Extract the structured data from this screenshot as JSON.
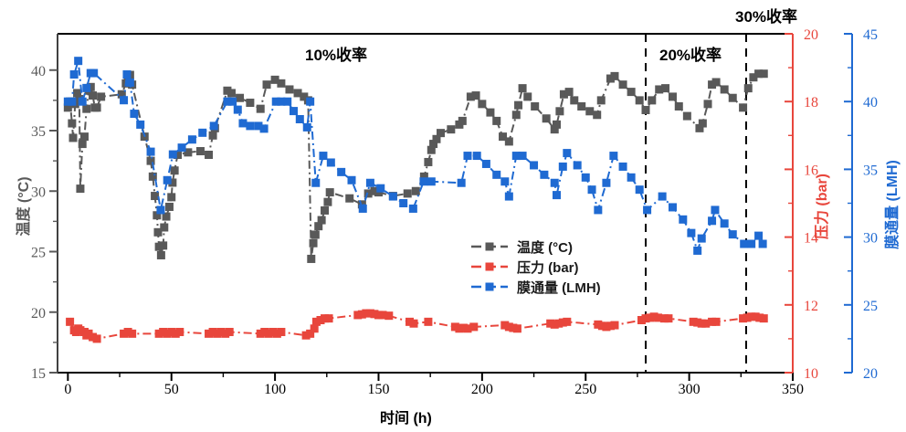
{
  "annotations": {
    "phase1": "10%收率",
    "phase2": "20%收率",
    "phase3": "30%收率"
  },
  "axes": {
    "x": {
      "label": "时间 (h)",
      "min": -5,
      "max": 350,
      "tick_min": 0,
      "tick_max": 350,
      "major_step": 50,
      "minor_step": 25,
      "color": "#000000"
    },
    "temp": {
      "label": "温度 (°C)",
      "min": 15,
      "max": 43,
      "tick_min": 15,
      "tick_max": 40,
      "major_step": 5,
      "minor_step": 2.5,
      "color": "#595959"
    },
    "pressure": {
      "label": "压力 (bar)",
      "min": 10,
      "max": 20,
      "tick_min": 10,
      "tick_max": 20,
      "major_step": 2,
      "minor_step": 1,
      "color": "#e8463c"
    },
    "flux": {
      "label": "膜通量 (LMH)",
      "min": 20,
      "max": 45,
      "tick_min": 20,
      "tick_max": 45,
      "major_step": 5,
      "minor_step": 2.5,
      "color": "#1f6ad2"
    }
  },
  "legend": [
    {
      "label": "温度 (°C)",
      "color": "#595959"
    },
    {
      "label": "压力 (bar)",
      "color": "#e8463c"
    },
    {
      "label": "膜通量 (LMH)",
      "color": "#1f6ad2"
    }
  ],
  "phase_lines_x": [
    279,
    327.5
  ],
  "chart_data": {
    "type": "line",
    "title": "",
    "xlabel": "时间 (h)",
    "grid": false,
    "legend_position": "center-right-inside",
    "series": [
      {
        "name": "温度 (°C)",
        "axis": "temp",
        "color": "#595959",
        "marker": "square",
        "points": [
          [
            0,
            36.9
          ],
          [
            1,
            37.4
          ],
          [
            2,
            35.6
          ],
          [
            2.5,
            34.4
          ],
          [
            3.5,
            37.2
          ],
          [
            4.5,
            38.1
          ],
          [
            5.5,
            37.6
          ],
          [
            6,
            30.2
          ],
          [
            7,
            33.9
          ],
          [
            8,
            34.5
          ],
          [
            9,
            36.8
          ],
          [
            10,
            38.3
          ],
          [
            11,
            38.6
          ],
          [
            12,
            37.9
          ],
          [
            13,
            36.9
          ],
          [
            14,
            36.9
          ],
          [
            16,
            37.8
          ],
          [
            26,
            38.0
          ],
          [
            28,
            38.9
          ],
          [
            29,
            39.4
          ],
          [
            30,
            39.6
          ],
          [
            31,
            38.8
          ],
          [
            37,
            34.5
          ],
          [
            40,
            32.5
          ],
          [
            41,
            31.2
          ],
          [
            42,
            29.6
          ],
          [
            43,
            28.0
          ],
          [
            43.5,
            26.6
          ],
          [
            44,
            25.4
          ],
          [
            45,
            24.7
          ],
          [
            46,
            25.5
          ],
          [
            46.5,
            27.0
          ],
          [
            47.5,
            27.9
          ],
          [
            49,
            28.7
          ],
          [
            50,
            29.5
          ],
          [
            50.5,
            30.7
          ],
          [
            51.5,
            31.7
          ],
          [
            53,
            33.0
          ],
          [
            58,
            33.2
          ],
          [
            64,
            33.3
          ],
          [
            68,
            33.0
          ],
          [
            70,
            34.6
          ],
          [
            71,
            35.2
          ],
          [
            77,
            38.3
          ],
          [
            79,
            38.1
          ],
          [
            83,
            37.7
          ],
          [
            88,
            37.3
          ],
          [
            93,
            36.8
          ],
          [
            96,
            38.8
          ],
          [
            100,
            39.2
          ],
          [
            103,
            38.9
          ],
          [
            107,
            38.4
          ],
          [
            111,
            38.1
          ],
          [
            114,
            37.8
          ],
          [
            116,
            37.5
          ],
          [
            117.5,
            24.4
          ],
          [
            118.5,
            25.7
          ],
          [
            119.5,
            26.4
          ],
          [
            121,
            27.1
          ],
          [
            122.5,
            27.6
          ],
          [
            124,
            28.4
          ],
          [
            125.5,
            29.1
          ],
          [
            126.5,
            29.9
          ],
          [
            136,
            29.4
          ],
          [
            142,
            28.9
          ],
          [
            145,
            29.8
          ],
          [
            148,
            30.0
          ],
          [
            150,
            29.9
          ],
          [
            157,
            29.6
          ],
          [
            164,
            29.8
          ],
          [
            168,
            30.0
          ],
          [
            172,
            31.2
          ],
          [
            174,
            32.4
          ],
          [
            175.5,
            33.4
          ],
          [
            176.5,
            33.9
          ],
          [
            178,
            34.3
          ],
          [
            180,
            34.8
          ],
          [
            185,
            35.1
          ],
          [
            189,
            35.5
          ],
          [
            190.5,
            35.8
          ],
          [
            194.5,
            37.8
          ],
          [
            197,
            37.9
          ],
          [
            200,
            37.2
          ],
          [
            204,
            36.5
          ],
          [
            207,
            35.8
          ],
          [
            210,
            34.5
          ],
          [
            213,
            34.1
          ],
          [
            216.5,
            36.3
          ],
          [
            217.5,
            37.1
          ],
          [
            219.5,
            38.5
          ],
          [
            222,
            37.8
          ],
          [
            225.5,
            37.0
          ],
          [
            231,
            36.0
          ],
          [
            235,
            35.1
          ],
          [
            236,
            35.5
          ],
          [
            237.5,
            36.6
          ],
          [
            239.5,
            38.0
          ],
          [
            242,
            38.2
          ],
          [
            244.5,
            37.5
          ],
          [
            248,
            37.0
          ],
          [
            252,
            36.6
          ],
          [
            255.5,
            36.3
          ],
          [
            257.5,
            37.5
          ],
          [
            262,
            39.3
          ],
          [
            264,
            39.5
          ],
          [
            268,
            38.8
          ],
          [
            272,
            38.2
          ],
          [
            276,
            37.5
          ],
          [
            279,
            36.7
          ],
          [
            282,
            37.5
          ],
          [
            285.5,
            38.4
          ],
          [
            288.5,
            38.5
          ],
          [
            292,
            37.8
          ],
          [
            295,
            37.0
          ],
          [
            299,
            36.2
          ],
          [
            305,
            35.2
          ],
          [
            306.5,
            35.6
          ],
          [
            309,
            37.2
          ],
          [
            311,
            38.8
          ],
          [
            313,
            39.0
          ],
          [
            317,
            38.4
          ],
          [
            321,
            37.7
          ],
          [
            326,
            36.9
          ],
          [
            328.5,
            38.5
          ],
          [
            331,
            39.4
          ],
          [
            333.5,
            39.7
          ],
          [
            336,
            39.7
          ]
        ]
      },
      {
        "name": "压力 (bar)",
        "axis": "pressure",
        "color": "#e8463c",
        "marker": "square",
        "points": [
          [
            1,
            11.5
          ],
          [
            3,
            11.25
          ],
          [
            4,
            11.2
          ],
          [
            5,
            11.3
          ],
          [
            6,
            11.25
          ],
          [
            8,
            11.2
          ],
          [
            9,
            11.1
          ],
          [
            10,
            11.15
          ],
          [
            12,
            11.05
          ],
          [
            14,
            11.0
          ],
          [
            27,
            11.15
          ],
          [
            29,
            11.2
          ],
          [
            31,
            11.15
          ],
          [
            44,
            11.15
          ],
          [
            46,
            11.2
          ],
          [
            48,
            11.15
          ],
          [
            50,
            11.2
          ],
          [
            52,
            11.15
          ],
          [
            54,
            11.2
          ],
          [
            68,
            11.15
          ],
          [
            70,
            11.2
          ],
          [
            72,
            11.15
          ],
          [
            74,
            11.2
          ],
          [
            76,
            11.15
          ],
          [
            78,
            11.2
          ],
          [
            93,
            11.15
          ],
          [
            95,
            11.2
          ],
          [
            97,
            11.15
          ],
          [
            99,
            11.2
          ],
          [
            101,
            11.15
          ],
          [
            103,
            11.2
          ],
          [
            115,
            11.1
          ],
          [
            117,
            11.15
          ],
          [
            119,
            11.3
          ],
          [
            120,
            11.5
          ],
          [
            122,
            11.55
          ],
          [
            124,
            11.6
          ],
          [
            126,
            11.6
          ],
          [
            140,
            11.7
          ],
          [
            142,
            11.72
          ],
          [
            144,
            11.75
          ],
          [
            146,
            11.75
          ],
          [
            148,
            11.73
          ],
          [
            150,
            11.7
          ],
          [
            152,
            11.7
          ],
          [
            155,
            11.68
          ],
          [
            165,
            11.5
          ],
          [
            167,
            11.45
          ],
          [
            174,
            11.5
          ],
          [
            187,
            11.35
          ],
          [
            189,
            11.3
          ],
          [
            191,
            11.32
          ],
          [
            193,
            11.3
          ],
          [
            196,
            11.35
          ],
          [
            211,
            11.4
          ],
          [
            213,
            11.35
          ],
          [
            215,
            11.32
          ],
          [
            217,
            11.3
          ],
          [
            233,
            11.45
          ],
          [
            235,
            11.42
          ],
          [
            237,
            11.45
          ],
          [
            239,
            11.48
          ],
          [
            241,
            11.5
          ],
          [
            256,
            11.42
          ],
          [
            258,
            11.38
          ],
          [
            260,
            11.35
          ],
          [
            262,
            11.38
          ],
          [
            264,
            11.4
          ],
          [
            277,
            11.55
          ],
          [
            279,
            11.6
          ],
          [
            281,
            11.62
          ],
          [
            283,
            11.65
          ],
          [
            285,
            11.62
          ],
          [
            288,
            11.6
          ],
          [
            290,
            11.6
          ],
          [
            302,
            11.5
          ],
          [
            304,
            11.48
          ],
          [
            306,
            11.45
          ],
          [
            308,
            11.45
          ],
          [
            311,
            11.5
          ],
          [
            313,
            11.5
          ],
          [
            326,
            11.6
          ],
          [
            328,
            11.62
          ],
          [
            330,
            11.65
          ],
          [
            332,
            11.65
          ],
          [
            334,
            11.62
          ],
          [
            336,
            11.6
          ]
        ]
      },
      {
        "name": "膜通量 (LMH)",
        "axis": "flux",
        "color": "#1f6ad2",
        "marker": "square",
        "points": [
          [
            0,
            40.0
          ],
          [
            2,
            40.0
          ],
          [
            3,
            42.0
          ],
          [
            5,
            43.0
          ],
          [
            7,
            40.0
          ],
          [
            9,
            41.0
          ],
          [
            11,
            42.1
          ],
          [
            12.5,
            42.1
          ],
          [
            27,
            40.1
          ],
          [
            28.5,
            42.0
          ],
          [
            30,
            41.4
          ],
          [
            32,
            39.1
          ],
          [
            35,
            38.3
          ],
          [
            40,
            36.3
          ],
          [
            44.8,
            32.0
          ],
          [
            48,
            34.2
          ],
          [
            50.7,
            36.1
          ],
          [
            55,
            36.6
          ],
          [
            60,
            37.2
          ],
          [
            65,
            37.7
          ],
          [
            70.5,
            38.2
          ],
          [
            77,
            40.0
          ],
          [
            79.5,
            40.0
          ],
          [
            82,
            39.4
          ],
          [
            84.5,
            38.4
          ],
          [
            88,
            38.2
          ],
          [
            92,
            38.2
          ],
          [
            94.7,
            38.0
          ],
          [
            100.5,
            40.0
          ],
          [
            103,
            40.0
          ],
          [
            106,
            40.0
          ],
          [
            109,
            39.3
          ],
          [
            112,
            38.7
          ],
          [
            115.5,
            38.1
          ],
          [
            117,
            40.0
          ],
          [
            119.7,
            34.0
          ],
          [
            123.3,
            36.0
          ],
          [
            127,
            35.5
          ],
          [
            132,
            34.8
          ],
          [
            137,
            34.2
          ],
          [
            142.4,
            32.1
          ],
          [
            146,
            34.0
          ],
          [
            151,
            33.6
          ],
          [
            157,
            33.0
          ],
          [
            162,
            32.5
          ],
          [
            166.7,
            32.1
          ],
          [
            171.8,
            34.1
          ],
          [
            175.5,
            34.1
          ],
          [
            190,
            34.0
          ],
          [
            193,
            36.0
          ],
          [
            197.5,
            36.0
          ],
          [
            202,
            35.4
          ],
          [
            207,
            34.6
          ],
          [
            211,
            34.1
          ],
          [
            213,
            33.0
          ],
          [
            216.5,
            36.0
          ],
          [
            219.5,
            36.0
          ],
          [
            225,
            35.3
          ],
          [
            230,
            34.6
          ],
          [
            235,
            34.0
          ],
          [
            236,
            33.1
          ],
          [
            239,
            35.2
          ],
          [
            241,
            36.2
          ],
          [
            246,
            35.3
          ],
          [
            250,
            34.4
          ],
          [
            253,
            33.5
          ],
          [
            256,
            32.0
          ],
          [
            260,
            34.0
          ],
          [
            263.5,
            36.0
          ],
          [
            268,
            35.2
          ],
          [
            272,
            34.4
          ],
          [
            276,
            33.5
          ],
          [
            279.7,
            32.0
          ],
          [
            287,
            33.0
          ],
          [
            292,
            32.2
          ],
          [
            297,
            31.3
          ],
          [
            301,
            30.3
          ],
          [
            304,
            29.0
          ],
          [
            306,
            29.9
          ],
          [
            311,
            31.2
          ],
          [
            312.5,
            32.0
          ],
          [
            317,
            31.0
          ],
          [
            321,
            30.2
          ],
          [
            326.5,
            29.5
          ],
          [
            330,
            29.5
          ],
          [
            333.5,
            30.1
          ],
          [
            335.5,
            29.5
          ]
        ]
      }
    ]
  }
}
